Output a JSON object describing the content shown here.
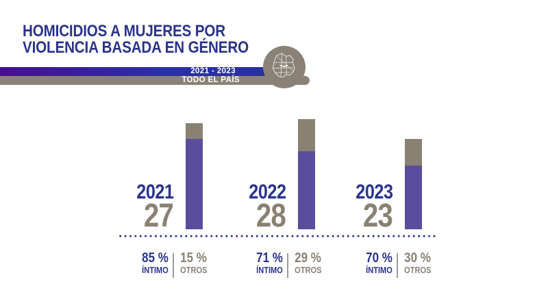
{
  "header": {
    "title_line1": "HOMICIDIOS A MUJERES POR",
    "title_line2": "VIOLENCIA BASADA EN GÉNERO",
    "period": "2021 - 2023",
    "scope": "TODO EL PAÍS"
  },
  "colors": {
    "navy": "#29338C",
    "warm_gray": "#8A8173",
    "bar_purple": "#5B4D9D",
    "banner_purple": "#470E8F",
    "banner_blue": "#2B2FA6",
    "banner_gray": "#8A8276"
  },
  "chart_data": {
    "type": "bar",
    "stacked": true,
    "title": "HOMICIDIOS A MUJERES POR VIOLENCIA BASADA EN GÉNERO",
    "period": "2021 - 2023",
    "scope": "TODO EL PAÍS",
    "categories": [
      "2021",
      "2022",
      "2023"
    ],
    "totals": [
      27,
      28,
      23
    ],
    "series": [
      {
        "name": "ÍNTIMO",
        "pct": [
          85,
          71,
          70
        ],
        "color": "#5B4D9D"
      },
      {
        "name": "OTROS",
        "pct": [
          15,
          29,
          30
        ],
        "color": "#8A8173"
      }
    ],
    "axes": "hidden",
    "grid": false,
    "legend_position": "below-each-bar"
  },
  "bars": [
    {
      "year": "2021",
      "total": "27"
    },
    {
      "year": "2022",
      "total": "28"
    },
    {
      "year": "2023",
      "total": "23"
    }
  ],
  "percent_groups": [
    {
      "intimo_pct": "85 %",
      "intimo_label": "ÍNTIMO",
      "otros_pct": "15 %",
      "otros_label": "OTROS"
    },
    {
      "intimo_pct": "71 %",
      "intimo_label": "ÍNTIMO",
      "otros_pct": "29 %",
      "otros_label": "OTROS"
    },
    {
      "intimo_pct": "70 %",
      "intimo_label": "ÍNTIMO",
      "otros_pct": "30 %",
      "otros_label": "OTROS"
    }
  ]
}
